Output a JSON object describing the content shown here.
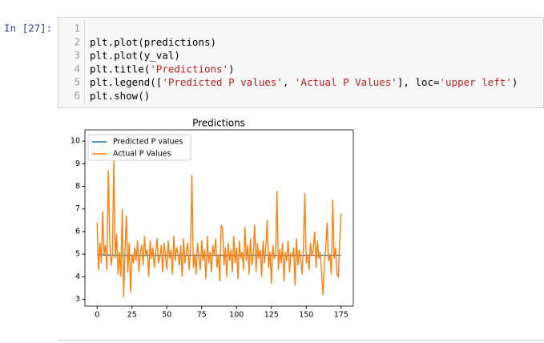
{
  "prompt": "In [27]:",
  "code": {
    "line_numbers": [
      1,
      2,
      3,
      4,
      5,
      6
    ],
    "lines": [
      [],
      [
        "plt.plot(predictions)"
      ],
      [
        "plt.plot(y_val)"
      ],
      [
        "plt.title(",
        "'Predictions'",
        ")"
      ],
      [
        "plt.legend([",
        "'Predicted P values'",
        ", ",
        "'Actual P Values'",
        "], loc=",
        "'upper left'",
        ")"
      ],
      [
        "plt.show()"
      ]
    ]
  },
  "chart_data": {
    "type": "line",
    "title": "Predictions",
    "xlim": [
      -8.75,
      183.75
    ],
    "xticks": [
      0,
      25,
      50,
      75,
      100,
      125,
      150,
      175
    ],
    "ylim": [
      2.7,
      10.5
    ],
    "yticks": [
      3,
      4,
      5,
      6,
      7,
      8,
      9,
      10
    ],
    "legend": "upper left",
    "series": [
      {
        "name": "Predicted P values",
        "color": "#1f77b4",
        "values": [
          4.98,
          4.98,
          4.97,
          4.97,
          4.97,
          4.96,
          4.96,
          4.96,
          4.96,
          4.96,
          4.95,
          4.95,
          4.95,
          4.95,
          4.95,
          4.95,
          4.95,
          4.95,
          4.95,
          4.95,
          4.95,
          4.95,
          4.95,
          4.95,
          4.95,
          4.95,
          4.95,
          4.95,
          4.95,
          4.95,
          4.95,
          4.95,
          4.95,
          4.95,
          4.95,
          4.95,
          4.95,
          4.95,
          4.95,
          4.95,
          4.95,
          4.95,
          4.95,
          4.95,
          4.95,
          4.95,
          4.95,
          4.95,
          4.95,
          4.95,
          4.95,
          4.95,
          4.95,
          4.95,
          4.95,
          4.95,
          4.95,
          4.95,
          4.95,
          4.95,
          4.95,
          4.95,
          4.95,
          4.95,
          4.95,
          4.95,
          4.95,
          4.95,
          4.95,
          4.95,
          4.95,
          4.95,
          4.95,
          4.95,
          4.95,
          4.95,
          4.95,
          4.95,
          4.95,
          4.95,
          4.95,
          4.95,
          4.95,
          4.95,
          4.95,
          4.95,
          4.95,
          4.95,
          4.95,
          4.95,
          4.95,
          4.95,
          4.95,
          4.95,
          4.95,
          4.95,
          4.95,
          4.95,
          4.95,
          4.95,
          4.95,
          4.95,
          4.95,
          4.95,
          4.95,
          4.95,
          4.95,
          4.95,
          4.95,
          4.95,
          4.95,
          4.95,
          4.95,
          4.95,
          4.95,
          4.95,
          4.95,
          4.95,
          4.95,
          4.95,
          4.95,
          4.95,
          4.95,
          4.95,
          4.95,
          4.95,
          4.95,
          4.95,
          4.95,
          4.95,
          4.95,
          4.95,
          4.95,
          4.95,
          4.95,
          4.95,
          4.95,
          4.95,
          4.95,
          4.95,
          4.95,
          4.95,
          4.95,
          4.95,
          4.95,
          4.95,
          4.95,
          4.95,
          4.95,
          4.95,
          4.95,
          4.95,
          4.95,
          4.95,
          4.95,
          4.95,
          4.95,
          4.95,
          4.95,
          4.95,
          4.95,
          4.95,
          4.95,
          4.95,
          4.95,
          4.95,
          4.95,
          4.95,
          4.95,
          4.95,
          4.95,
          4.95,
          4.95,
          4.95,
          4.95,
          4.95
        ]
      },
      {
        "name": "Actual P Values",
        "color": "#ff7f0e",
        "values": [
          6.4,
          4.3,
          5.5,
          4.6,
          6.9,
          5.0,
          5.4,
          4.3,
          8.7,
          5.8,
          4.5,
          5.0,
          9.2,
          4.8,
          5.9,
          4.1,
          5.1,
          4.0,
          7.0,
          3.1,
          5.2,
          6.7,
          4.2,
          5.5,
          3.3,
          5.0,
          4.6,
          5.3,
          4.7,
          5.6,
          4.2,
          5.1,
          5.4,
          4.5,
          5.8,
          4.9,
          5.2,
          4.0,
          5.6,
          4.8,
          5.3,
          4.4,
          5.1,
          5.7,
          4.6,
          4.9,
          5.4,
          4.2,
          5.5,
          5.0,
          4.3,
          5.6,
          4.8,
          5.2,
          4.1,
          5.8,
          4.7,
          5.3,
          5.0,
          4.5,
          5.4,
          4.0,
          5.7,
          4.6,
          5.1,
          5.5,
          4.3,
          5.2,
          8.5,
          4.4,
          5.0,
          4.1,
          5.5,
          4.8,
          4.3,
          5.6,
          4.7,
          5.2,
          3.9,
          5.8,
          4.6,
          5.1,
          4.2,
          5.4,
          4.9,
          5.7,
          4.4,
          5.0,
          3.8,
          6.3,
          6.1,
          4.5,
          5.3,
          4.0,
          5.5,
          4.7,
          5.2,
          4.2,
          5.8,
          4.6,
          5.3,
          3.9,
          5.6,
          4.8,
          5.1,
          4.3,
          6.2,
          4.7,
          5.4,
          4.1,
          5.7,
          4.5,
          5.0,
          6.3,
          4.2,
          5.5,
          4.8,
          5.2,
          4.0,
          5.6,
          4.6,
          5.3,
          6.5,
          4.4,
          5.1,
          3.7,
          5.4,
          4.8,
          5.0,
          7.8,
          4.3,
          5.2,
          4.6,
          5.5,
          3.8,
          5.1,
          4.7,
          5.6,
          4.2,
          5.0,
          4.9,
          5.3,
          3.6,
          5.7,
          4.5,
          5.2,
          4.8,
          4.1,
          5.4,
          7.7,
          4.6,
          5.0,
          4.3,
          5.5,
          4.9,
          5.2,
          6.0,
          4.4,
          5.6,
          4.8,
          5.1,
          4.2,
          3.2,
          4.6,
          5.3,
          6.4,
          4.7,
          5.0,
          4.1,
          7.4,
          4.8,
          5.3,
          4.1,
          4.0,
          5.6,
          6.8
        ]
      }
    ]
  }
}
